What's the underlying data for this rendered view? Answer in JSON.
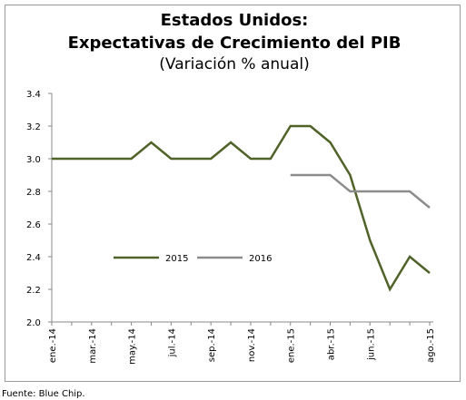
{
  "chart_data": {
    "type": "line",
    "title": [
      "Estados Unidos:",
      "Expectativas de Crecimiento del PIB"
    ],
    "subtitle": "(Variación % anual)",
    "categories": [
      "ene.-14",
      null,
      "mar.-14",
      null,
      "may.-14",
      null,
      "jul.-14",
      null,
      "sep.-14",
      null,
      "nov.-14",
      null,
      "ene.-15",
      null,
      "abr.-15",
      null,
      "jun.-15",
      null,
      null,
      "ago.-15"
    ],
    "series": [
      {
        "name": "2015",
        "color": "#4f6228",
        "values": [
          3.0,
          3.0,
          3.0,
          3.0,
          3.0,
          3.1,
          3.0,
          3.0,
          3.0,
          3.1,
          3.0,
          3.0,
          3.2,
          3.2,
          3.1,
          2.9,
          2.5,
          2.2,
          2.4,
          2.3
        ]
      },
      {
        "name": "2016",
        "color": "#8c8c8c",
        "values": [
          null,
          null,
          null,
          null,
          null,
          null,
          null,
          null,
          null,
          null,
          null,
          null,
          2.9,
          2.9,
          2.9,
          2.8,
          2.8,
          2.8,
          2.8,
          2.7
        ]
      }
    ],
    "ylim": [
      2.0,
      3.4
    ],
    "yticks": [
      {
        "value": 2.0,
        "label": "2.0"
      },
      2.2,
      2.4,
      2.6,
      2.8,
      {
        "value": 3.0,
        "label": "3.0"
      },
      3.2,
      3.4
    ],
    "legend": "center",
    "source": "Fuente: Blue Chip."
  }
}
